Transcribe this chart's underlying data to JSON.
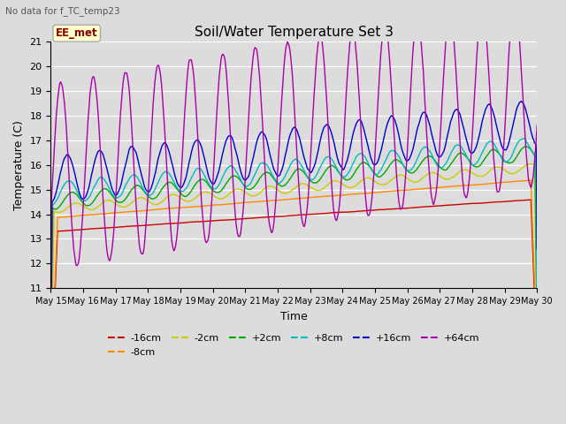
{
  "title": "Soil/Water Temperature Set 3",
  "subtitle": "No data for f_TC_temp23",
  "xlabel": "Time",
  "ylabel": "Temperature (C)",
  "ylim": [
    11.0,
    21.0
  ],
  "yticks": [
    11.0,
    12.0,
    13.0,
    14.0,
    15.0,
    16.0,
    17.0,
    18.0,
    19.0,
    20.0,
    21.0
  ],
  "background_color": "#dcdcdc",
  "annotation_label": "EE_met",
  "annotation_color": "#8b0000",
  "annotation_bg": "#ffffcc",
  "series": [
    {
      "label": "-16cm",
      "color": "#cc0000"
    },
    {
      "label": "-8cm",
      "color": "#ff8800"
    },
    {
      "label": "-2cm",
      "color": "#cccc00"
    },
    {
      "label": "+2cm",
      "color": "#00aa00"
    },
    {
      "label": "+8cm",
      "color": "#00bbbb"
    },
    {
      "label": "+16cm",
      "color": "#0000cc"
    },
    {
      "label": "+64cm",
      "color": "#aa00aa"
    }
  ],
  "xstart": 15,
  "xend": 30,
  "num_points": 720
}
